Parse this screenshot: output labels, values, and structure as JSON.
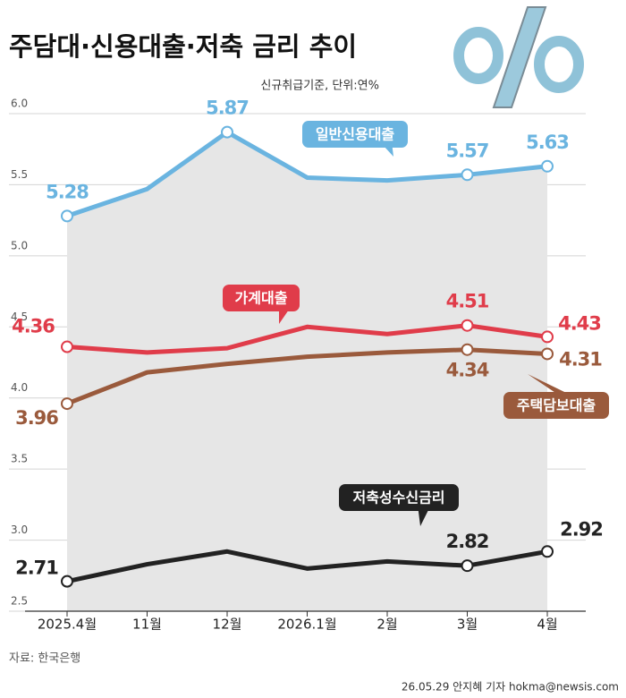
{
  "chart_data": {
    "type": "line",
    "title": "주담대·신용대출·저축 금리 추이",
    "subtitle": "신규취급기준, 단위:연%",
    "categories": [
      "2025.4월",
      "11월",
      "12월",
      "2026.1월",
      "2월",
      "3월",
      "4월"
    ],
    "ylim": [
      2.5,
      6.0
    ],
    "yticks": [
      2.5,
      {
        "value": 3,
        "label": "3.0"
      },
      3.5,
      {
        "value": 4,
        "label": "4.0"
      },
      4.5,
      {
        "value": 5,
        "label": "5.0"
      },
      5.5,
      {
        "value": 6,
        "label": "6.0"
      }
    ],
    "grid": true,
    "series": [
      {
        "name": "일반신용대출",
        "color": "#6ab4e0",
        "values": [
          5.28,
          5.47,
          5.87,
          5.55,
          5.53,
          5.57,
          5.63
        ],
        "value_labels": [
          "5.28",
          null,
          "5.87",
          null,
          null,
          "5.57",
          "5.63"
        ]
      },
      {
        "name": "가계대출",
        "color": "#e03c4a",
        "values": [
          4.36,
          4.32,
          4.35,
          4.5,
          4.45,
          4.51,
          4.43
        ],
        "value_labels": [
          "4.36",
          null,
          null,
          null,
          null,
          "4.51",
          "4.43"
        ]
      },
      {
        "name": "주택담보대출",
        "color": "#9a5a3c",
        "values": [
          3.96,
          4.18,
          4.24,
          4.29,
          4.32,
          4.34,
          4.31
        ],
        "value_labels": [
          "3.96",
          null,
          null,
          null,
          null,
          "4.34",
          "4.31"
        ]
      },
      {
        "name": "저축성수신금리",
        "color": "#222222",
        "values": [
          2.71,
          2.83,
          2.92,
          2.8,
          2.85,
          2.82,
          2.92
        ],
        "value_labels": [
          "2.71",
          null,
          null,
          null,
          null,
          "2.82",
          "2.92"
        ]
      }
    ],
    "source": "자료: 한국은행",
    "credit": "26.05.29 안지혜 기자 hokma@newsis.com"
  }
}
